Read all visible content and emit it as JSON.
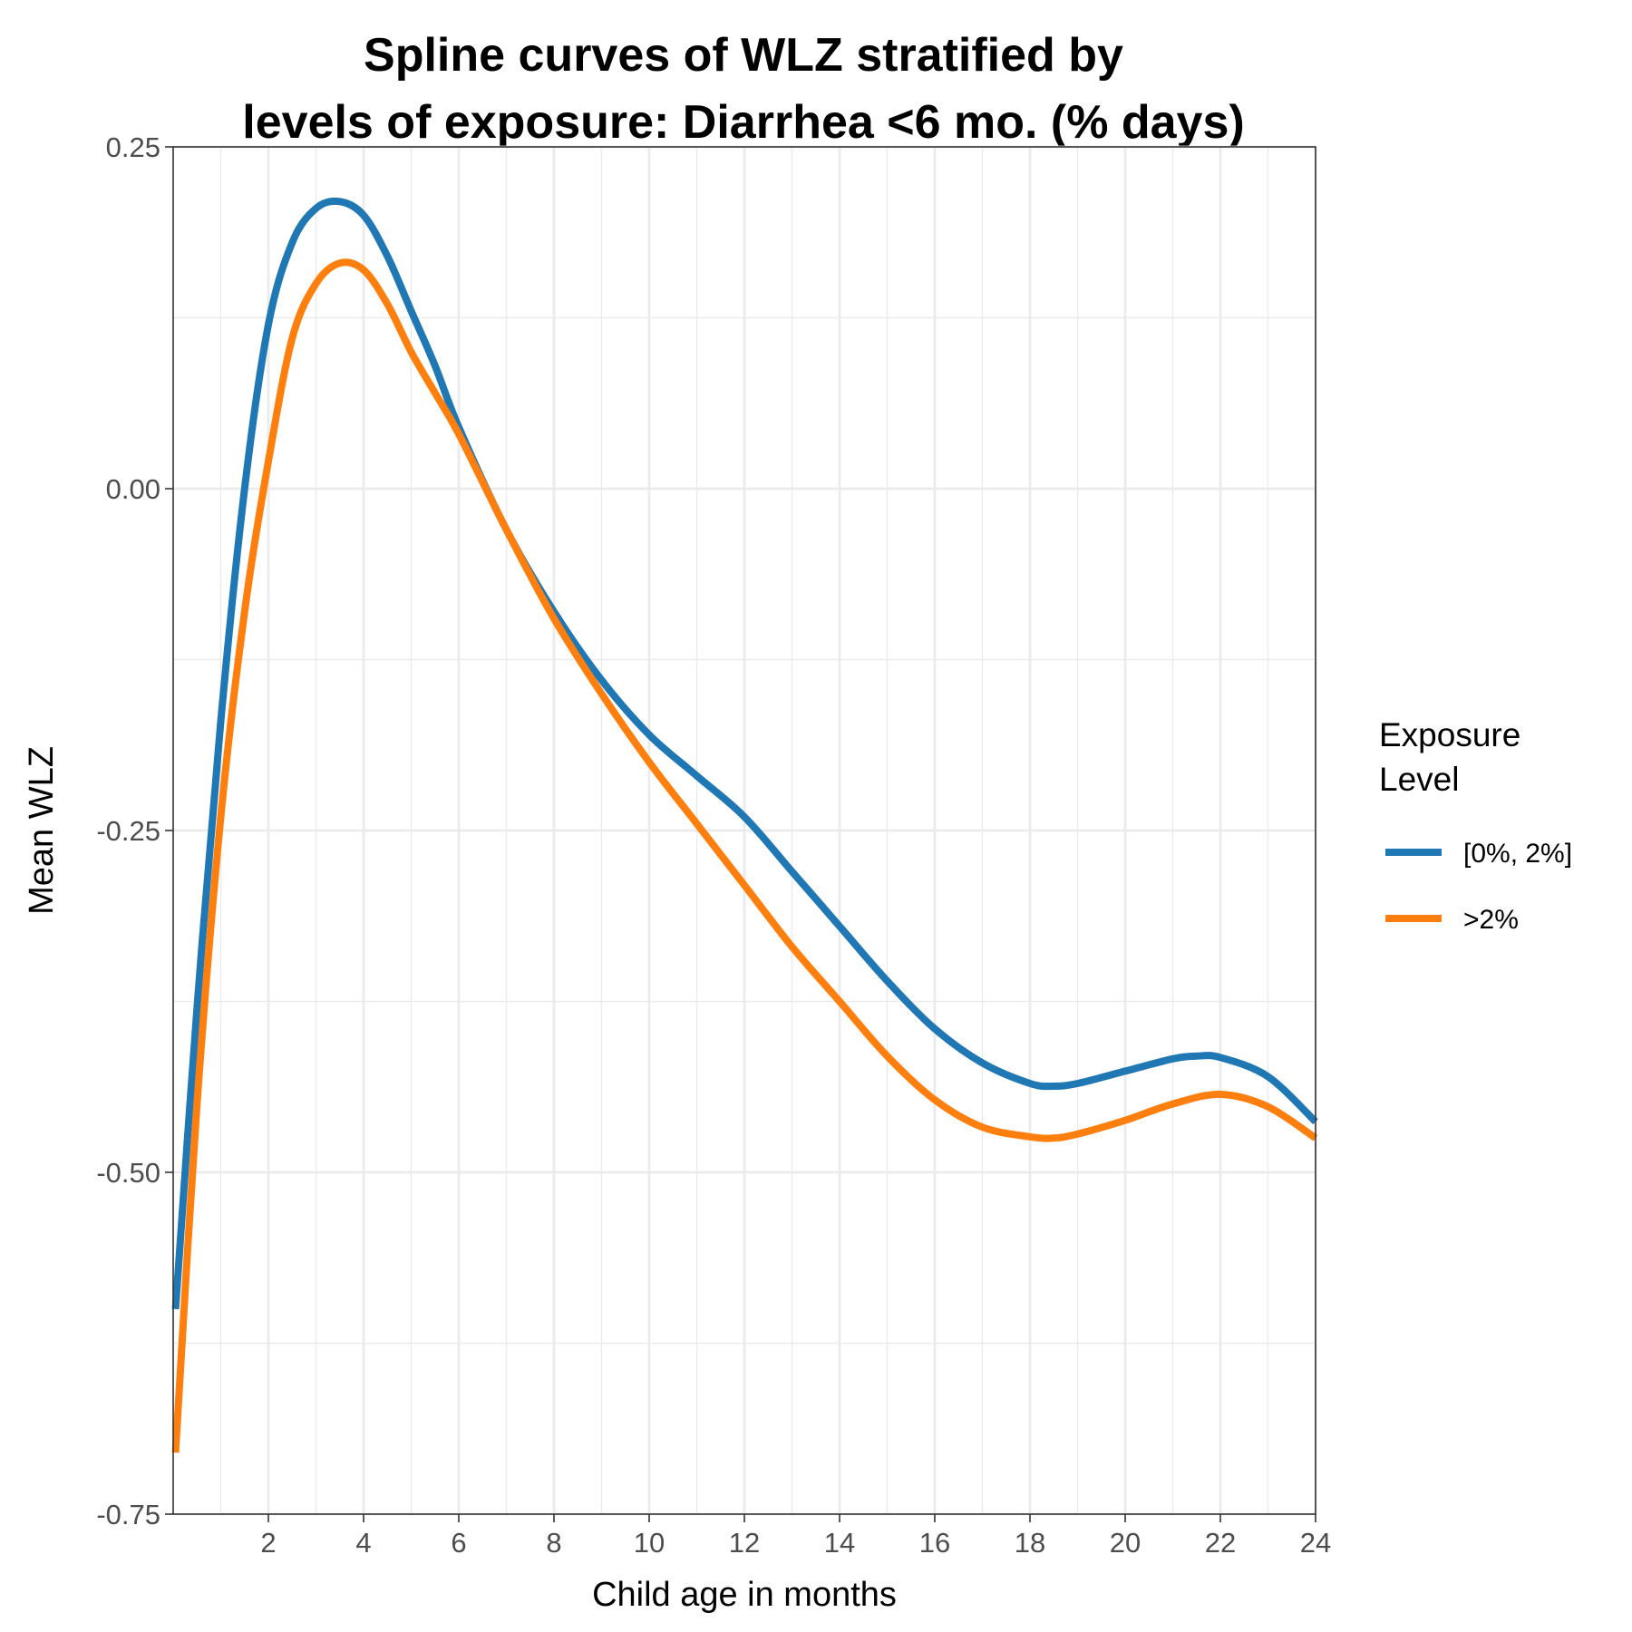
{
  "chart_data": {
    "type": "line",
    "title": [
      "Spline curves of WLZ stratified by",
      "levels of exposure: Diarrhea <6 mo. (% days)"
    ],
    "xlabel": "Child age in months",
    "ylabel": "Mean WLZ",
    "xlim": [
      0,
      24
    ],
    "ylim": [
      -0.75,
      0.25
    ],
    "x_ticks": [
      2,
      4,
      6,
      8,
      10,
      12,
      14,
      16,
      18,
      20,
      22,
      24
    ],
    "x_tick_labels": [
      "2",
      "4",
      "6",
      "8",
      "10",
      "12",
      "14",
      "16",
      "18",
      "20",
      "22",
      "24"
    ],
    "y_ticks": [
      0.25,
      0,
      -0.25,
      -0.5,
      -0.75
    ],
    "y_tick_labels": [
      "0.25",
      "0.00",
      "-0.25",
      "-0.50",
      "-0.75"
    ],
    "grid": true,
    "legend": {
      "title": [
        "Exposure",
        "Level"
      ],
      "position": "right"
    },
    "series": [
      {
        "name": "[0%, 2%]",
        "color": "#1f77b4",
        "x": [
          0.05,
          0.5,
          1,
          1.5,
          2,
          2.5,
          3,
          3.5,
          4,
          4.5,
          5,
          5.5,
          6,
          7,
          8,
          9,
          10,
          11,
          12,
          13,
          14,
          15,
          16,
          17,
          18,
          18.5,
          19,
          20,
          21,
          21.5,
          22,
          23,
          24
        ],
        "y": [
          -0.6,
          -0.38,
          -0.17,
          0.0,
          0.12,
          0.18,
          0.205,
          0.21,
          0.2,
          0.17,
          0.13,
          0.09,
          0.045,
          -0.03,
          -0.09,
          -0.14,
          -0.18,
          -0.21,
          -0.24,
          -0.28,
          -0.32,
          -0.36,
          -0.395,
          -0.42,
          -0.435,
          -0.437,
          -0.435,
          -0.426,
          -0.417,
          -0.415,
          -0.416,
          -0.43,
          -0.463
        ]
      },
      {
        "name": ">2%",
        "color": "#ff7f0e",
        "x": [
          0.05,
          0.5,
          1,
          1.5,
          2,
          2.5,
          3,
          3.5,
          4,
          4.5,
          5,
          5.5,
          6,
          7,
          8,
          9,
          10,
          11,
          12,
          13,
          14,
          15,
          16,
          17,
          18,
          18.5,
          19,
          20,
          21,
          22,
          23,
          24
        ],
        "y": [
          -0.705,
          -0.45,
          -0.24,
          -0.09,
          0.02,
          0.11,
          0.15,
          0.165,
          0.16,
          0.135,
          0.1,
          0.07,
          0.04,
          -0.03,
          -0.095,
          -0.15,
          -0.2,
          -0.245,
          -0.29,
          -0.335,
          -0.375,
          -0.415,
          -0.447,
          -0.467,
          -0.474,
          -0.475,
          -0.472,
          -0.462,
          -0.45,
          -0.443,
          -0.452,
          -0.475
        ]
      }
    ]
  }
}
